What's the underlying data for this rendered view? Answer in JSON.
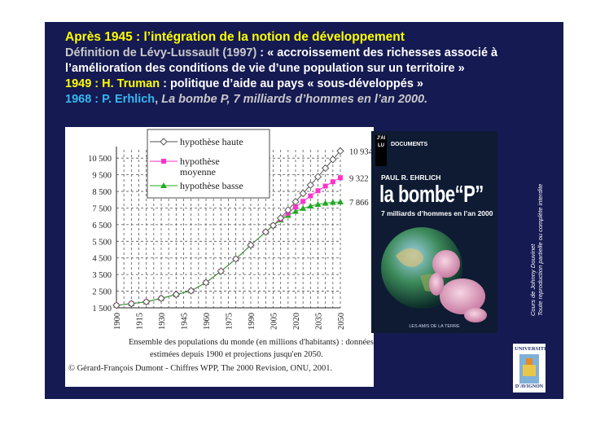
{
  "slide": {
    "heading": "Après 1945 : l’intégration de la notion de développement",
    "definition_source": "Définition de Lévy-Lussault (1997)",
    "definition_quote_1": " : « accroissement des richesses associé à",
    "definition_quote_2": "l’amélioration des conditions de vie d’une population sur un territoire »",
    "truman_year": "1949 : ",
    "truman_name": "H. Truman",
    "truman_text": " : politique d’aide au pays « sous-développés »",
    "ehrlich_prefix": "1968 : P. Erhlich",
    "ehrlich_comma": ", ",
    "ehrlich_book": "La bombe P, 7 milliards d’hommes en l’an 2000.",
    "copyright_line1": "Cours de Johnny Douvinet",
    "copyright_line2": "Toute reproduction partielle ou complète interdite",
    "colors": {
      "background": "#151a52",
      "heading": "#ffff00",
      "highlight": "#35b7ef",
      "text": "#ffffff"
    }
  },
  "book": {
    "logo": "J'AI LU",
    "series": "DOCUMENTS",
    "author": "PAUL R. EHRLICH",
    "title": "la bombe“P”",
    "subtitle": "7 milliards d’hommes en l’an 2000",
    "publisher": "LES AMIS DE LA TERRE"
  },
  "university_logo": {
    "top": "UNIVERSITÉ",
    "bottom": "D'AVIGNON"
  },
  "chart_data": {
    "type": "line",
    "x": [
      1900,
      1910,
      1920,
      1930,
      1940,
      1950,
      1960,
      1970,
      1980,
      1990,
      2000,
      2005,
      2010,
      2015,
      2020,
      2025,
      2030,
      2035,
      2040,
      2045,
      2050
    ],
    "series": [
      {
        "name": "hypothèse haute",
        "marker": "diamond-open",
        "color": "#555555",
        "values": [
          1650,
          1750,
          1860,
          2070,
          2300,
          2520,
          3020,
          3700,
          4440,
          5270,
          6060,
          6450,
          6900,
          7380,
          7880,
          8380,
          8880,
          9380,
          9900,
          10420,
          10934
        ]
      },
      {
        "name": "hypothèse moyenne",
        "marker": "square",
        "color": "#ff33cc",
        "values": [
          1650,
          1750,
          1860,
          2070,
          2300,
          2520,
          3020,
          3700,
          4440,
          5270,
          6060,
          6450,
          6840,
          7200,
          7560,
          7900,
          8230,
          8540,
          8820,
          9080,
          9322
        ]
      },
      {
        "name": "hypothèse basse",
        "marker": "triangle",
        "color": "#22aa22",
        "values": [
          1650,
          1750,
          1860,
          2070,
          2300,
          2520,
          3020,
          3700,
          4440,
          5270,
          6060,
          6450,
          6780,
          7060,
          7300,
          7480,
          7620,
          7720,
          7790,
          7840,
          7866
        ]
      }
    ],
    "xticks": [
      "1900",
      "1915",
      "1930",
      "1945",
      "1960",
      "1975",
      "1990",
      "2005",
      "2020",
      "2035",
      "2050"
    ],
    "yticks": [
      "1 500",
      "2 500",
      "3 500",
      "4 500",
      "5 500",
      "6 500",
      "7 500",
      "8 500",
      "9 500",
      "10 500"
    ],
    "ylim": [
      1500,
      11000
    ],
    "xlim": [
      1900,
      2050
    ],
    "end_labels": [
      "10 934",
      "9 322",
      "7 866"
    ],
    "grid": true,
    "legend_position": "top",
    "caption_line1": "Ensemble des populations du monde (en millions d'habitants) : données",
    "caption_line2": "estimées depuis 1900 et projections jusqu'en 2050.",
    "source": "© Gérard-François Dumont - Chiffres WPP, The 2000 Revision, ONU, 2001."
  }
}
